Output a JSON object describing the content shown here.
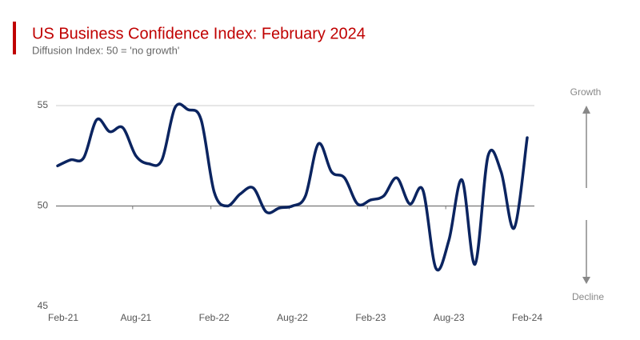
{
  "chart_data": {
    "type": "line",
    "title": "US Business Confidence Index: February 2024",
    "subtitle": "Diffusion Index: 50 = 'no growth'",
    "categories": [
      "Feb-21",
      null,
      null,
      null,
      null,
      null,
      "Aug-21",
      null,
      null,
      null,
      null,
      null,
      "Feb-22",
      null,
      null,
      null,
      null,
      null,
      "Aug-22",
      null,
      null,
      null,
      null,
      null,
      "Feb-23",
      null,
      null,
      null,
      null,
      null,
      "Aug-23",
      null,
      null,
      null,
      null,
      null,
      "Feb-24"
    ],
    "series": [
      {
        "name": "US Business Confidence Index",
        "color": "#0b2460",
        "values": [
          52.0,
          52.3,
          52.4,
          54.3,
          53.7,
          53.9,
          52.5,
          52.1,
          52.3,
          54.9,
          54.8,
          54.3,
          50.7,
          50.0,
          50.6,
          50.9,
          49.7,
          49.9,
          50.0,
          50.5,
          53.1,
          51.7,
          51.4,
          50.1,
          50.3,
          50.5,
          51.4,
          50.1,
          50.8,
          46.9,
          48.3,
          51.3,
          47.1,
          52.5,
          51.7,
          48.9,
          53.4
        ]
      }
    ],
    "ylim": [
      45,
      55
    ],
    "yticks": [
      45,
      50,
      55
    ],
    "grid": true,
    "annotations": {
      "up": "Growth",
      "down": "Decline"
    }
  }
}
